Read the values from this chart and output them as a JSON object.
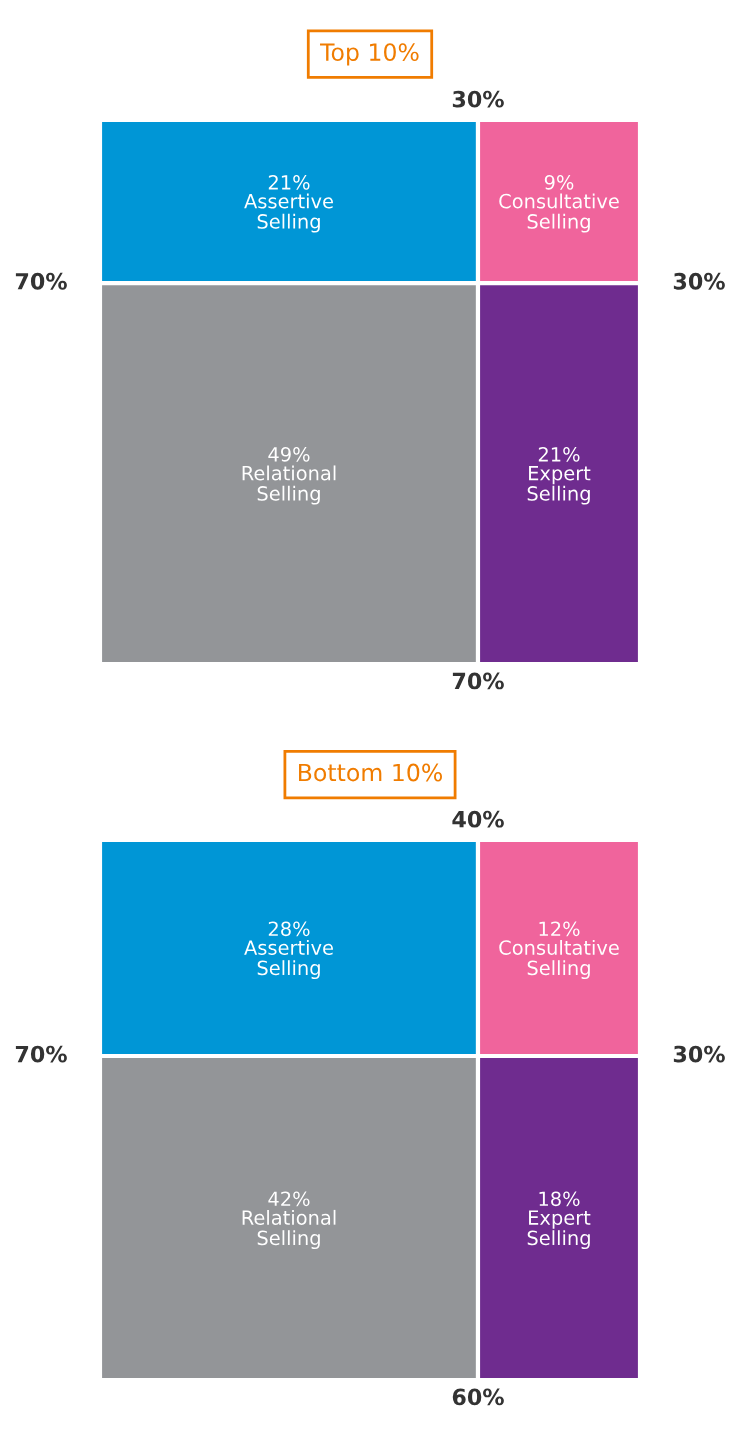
{
  "chart_data": [
    {
      "type": "other",
      "title": "Top 10%",
      "categories": [
        "Assertive Selling",
        "Consultative Selling",
        "Relational Selling",
        "Expert Selling"
      ],
      "values": [
        21,
        9,
        49,
        21
      ],
      "value_labels": [
        "21%",
        "9%",
        "49%",
        "21%"
      ],
      "colors": [
        "#0096d6",
        "#f0649c",
        "#939598",
        "#6f2c8f"
      ],
      "annotations": [
        "30%",
        "70%",
        "30%",
        "70%"
      ]
    },
    {
      "type": "other",
      "title": "Bottom 10%",
      "categories": [
        "Assertive Selling",
        "Consultative Selling",
        "Relational Selling",
        "Expert Selling"
      ],
      "values": [
        28,
        12,
        42,
        18
      ],
      "value_labels": [
        "28%",
        "12%",
        "42%",
        "18%"
      ],
      "colors": [
        "#0096d6",
        "#f0649c",
        "#939598",
        "#6f2c8f"
      ],
      "annotations": [
        "40%",
        "70%",
        "30%",
        "60%"
      ]
    }
  ]
}
